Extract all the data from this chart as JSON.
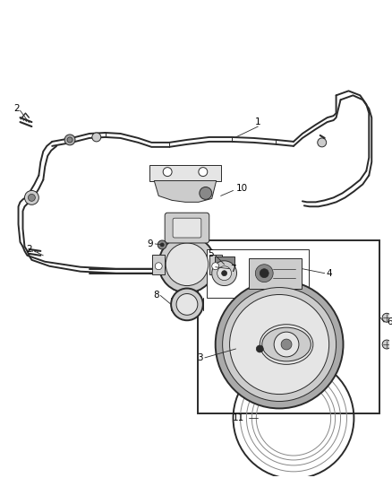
{
  "bg_color": "#ffffff",
  "fig_width": 4.38,
  "fig_height": 5.33,
  "dpi": 100,
  "line_color": "#2a2a2a",
  "gray1": "#aaaaaa",
  "gray2": "#cccccc",
  "gray3": "#888888",
  "gray4": "#666666",
  "gray5": "#e5e5e5",
  "components": {
    "pipe_lw": 1.4,
    "pipe_inner_lw": 0.7,
    "thin_lw": 0.7,
    "label_fontsize": 7.5
  }
}
